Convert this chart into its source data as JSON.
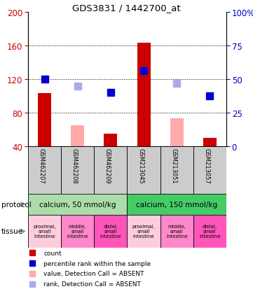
{
  "title": "GDS3831 / 1442700_at",
  "samples": [
    "GSM462207",
    "GSM462208",
    "GSM462209",
    "GSM213045",
    "GSM213051",
    "GSM213057"
  ],
  "red_bar_values": [
    103,
    null,
    55,
    163,
    null,
    50
  ],
  "pink_bar_values": [
    null,
    65,
    null,
    null,
    73,
    null
  ],
  "blue_square_values": [
    120,
    null,
    104,
    130,
    null,
    100
  ],
  "lavender_square_values": [
    null,
    112,
    null,
    null,
    115,
    null
  ],
  "ylim": [
    40,
    200
  ],
  "y_left_ticks": [
    40,
    80,
    120,
    160,
    200
  ],
  "y_right_ticks": [
    0,
    25,
    50,
    75,
    100
  ],
  "y_right_tick_positions": [
    40,
    80,
    120,
    160,
    200
  ],
  "protocol_groups": [
    {
      "label": "calcium, 50 mmol/kg",
      "cols": [
        0,
        1,
        2
      ]
    },
    {
      "label": "calcium, 150 mmol/kg",
      "cols": [
        3,
        4,
        5
      ]
    }
  ],
  "proto_colors": [
    "#aaddaa",
    "#44cc66"
  ],
  "tissue_labels": [
    "proximal,\nsmall\nintestine",
    "middle,\nsmall\nintestine",
    "distal,\nsmall\nintestine",
    "proximal,\nsmall\nintestine",
    "middle,\nsmall\nintestine",
    "distal,\nsmall\nintestine"
  ],
  "tissue_colors": [
    "#ffccdd",
    "#ff88cc",
    "#ff55bb",
    "#ffccdd",
    "#ff88cc",
    "#ff55bb"
  ],
  "red_color": "#cc0000",
  "pink_color": "#ffaaaa",
  "blue_color": "#0000cc",
  "lavender_color": "#aaaaee",
  "sample_bg_color": "#cccccc",
  "arrow_color": "#999999",
  "legend_items": [
    {
      "color": "#cc0000",
      "label": "count"
    },
    {
      "color": "#0000cc",
      "label": "percentile rank within the sample"
    },
    {
      "color": "#ffaaaa",
      "label": "value, Detection Call = ABSENT"
    },
    {
      "color": "#aaaaee",
      "label": "rank, Detection Call = ABSENT"
    }
  ]
}
